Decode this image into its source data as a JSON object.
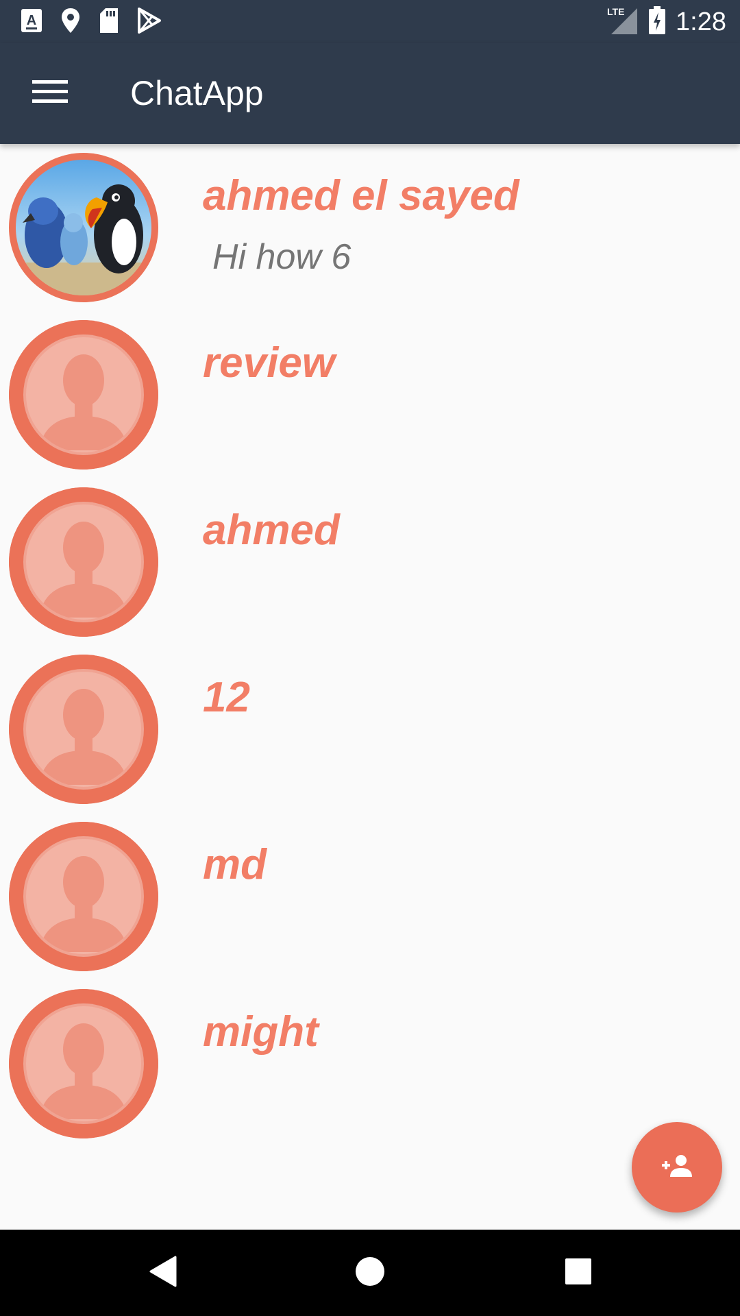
{
  "status_bar": {
    "time": "1:28",
    "network": "LTE",
    "left_icons": [
      "a-keyboard-icon",
      "location-pin-icon",
      "sd-card-icon",
      "play-store-icon"
    ],
    "right_icons": [
      "signal-icon",
      "battery-charging-icon"
    ]
  },
  "app_bar": {
    "title": "ChatApp",
    "menu_icon": "menu-icon"
  },
  "contacts": [
    {
      "name": "ahmed el sayed",
      "last_message": "Hi how 6",
      "avatar": "photo"
    },
    {
      "name": "review",
      "last_message": "",
      "avatar": "placeholder"
    },
    {
      "name": "ahmed",
      "last_message": "",
      "avatar": "placeholder"
    },
    {
      "name": "12",
      "last_message": "",
      "avatar": "placeholder"
    },
    {
      "name": "md",
      "last_message": "",
      "avatar": "placeholder"
    },
    {
      "name": "might",
      "last_message": "",
      "avatar": "placeholder"
    }
  ],
  "fab": {
    "icon": "add-person-icon"
  },
  "nav_bar": {
    "buttons": [
      "back-icon",
      "home-icon",
      "recents-icon"
    ]
  },
  "colors": {
    "app_bar": "#2f3b4c",
    "accent": "#eb7258",
    "name_text": "#f27e66",
    "message_text": "#757575",
    "background": "#fafafa"
  }
}
